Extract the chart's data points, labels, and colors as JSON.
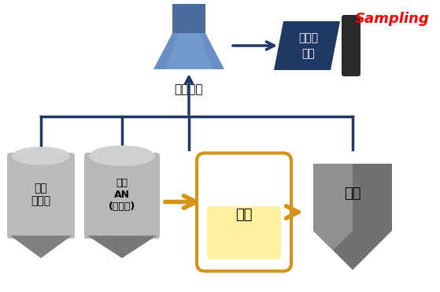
{
  "bg_color": "#ffffff",
  "navy": "#1F3864",
  "orange": "#D4941A",
  "gray_light": "#A8A8A8",
  "gray_mid": "#909090",
  "gray_dark": "#686868",
  "gray_darker": "#505050",
  "blue_top": "#4A6FA5",
  "blue_mid": "#5B80B8",
  "blue_bot": "#7090C0",
  "red": "#FF0000",
  "title_text": "Sampling",
  "scrubber_label": "스크러버",
  "carbon_label": "활성탄\n흡착",
  "reaction_label": "반응",
  "storage_label": "저장",
  "solvent_label": "용제\n개시제",
  "solvent_an_label": "용제\nAN\n(모노머)"
}
